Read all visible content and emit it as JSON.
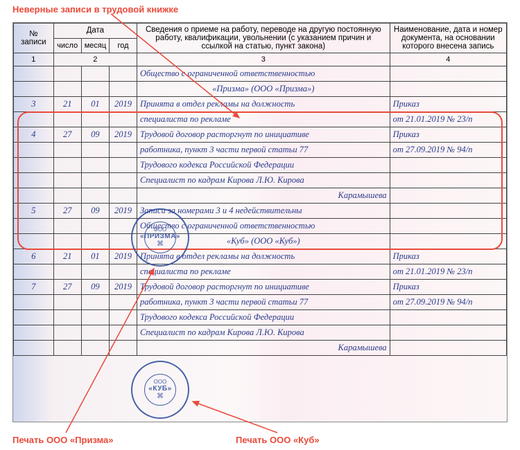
{
  "annotations": {
    "top": "Неверные записи в трудовой книжке",
    "bottom_left": "Печать ООО «Призма»",
    "bottom_right": "Печать ООО «Куб»"
  },
  "headers": {
    "col1": "№ записи",
    "col2": "Дата",
    "col3": "Сведения о приеме на работу, переводе на другую постоянную работу, квалификации, увольнении (с указанием причин и ссылкой на статью, пункт закона)",
    "col4": "Наименование, дата и номер документа, на основании которого внесена запись",
    "sub_day": "число",
    "sub_month": "месяц",
    "sub_year": "год",
    "n1": "1",
    "n2": "2",
    "n3": "3",
    "n4": "4"
  },
  "rows": [
    {
      "n": "",
      "d": "",
      "m": "",
      "y": "",
      "info": "Общество с ограниченной ответственностью",
      "doc": ""
    },
    {
      "n": "",
      "d": "",
      "m": "",
      "y": "",
      "info": "«Призма» (ООО «Призма»)",
      "doc": "",
      "center_info": true
    },
    {
      "n": "3",
      "d": "21",
      "m": "01",
      "y": "2019",
      "info": "Принята в отдел рекламы на должность",
      "doc": "Приказ"
    },
    {
      "n": "",
      "d": "",
      "m": "",
      "y": "",
      "info": "специалиста по рекламе",
      "doc": "от 21.01.2019 № 23/п"
    },
    {
      "n": "4",
      "d": "27",
      "m": "09",
      "y": "2019",
      "info": "Трудовой договор расторгнут по инициативе",
      "doc": "Приказ"
    },
    {
      "n": "",
      "d": "",
      "m": "",
      "y": "",
      "info": "работника, пункт 3 части первой статьи 77",
      "doc": "от 27.09.2019 № 94/п"
    },
    {
      "n": "",
      "d": "",
      "m": "",
      "y": "",
      "info": "Трудового кодекса Российской Федерации",
      "doc": ""
    },
    {
      "n": "",
      "d": "",
      "m": "",
      "y": "",
      "info": "Специалист по кадрам  <sig>Кирова</sig> Л.Ю. Кирова",
      "doc": ""
    },
    {
      "n": "",
      "d": "",
      "m": "",
      "y": "",
      "info": "<sigr>Карамышева</sigr>",
      "doc": ""
    },
    {
      "n": "5",
      "d": "27",
      "m": "09",
      "y": "2019",
      "info": "Записи за номерами 3 и 4 недействительны",
      "doc": ""
    },
    {
      "n": "",
      "d": "",
      "m": "",
      "y": "",
      "info": "Общество с ограниченной ответственностью",
      "doc": ""
    },
    {
      "n": "",
      "d": "",
      "m": "",
      "y": "",
      "info": "«Куб» (ООО «Куб»)",
      "doc": "",
      "center_info": true
    },
    {
      "n": "6",
      "d": "21",
      "m": "01",
      "y": "2019",
      "info": "Принята в отдел рекламы на должность",
      "doc": "Приказ"
    },
    {
      "n": "",
      "d": "",
      "m": "",
      "y": "",
      "info": "специалиста по рекламе",
      "doc": "от 21.01.2019 № 23/п"
    },
    {
      "n": "7",
      "d": "27",
      "m": "09",
      "y": "2019",
      "info": "Трудовой договор расторгнут по инициативе",
      "doc": "Приказ"
    },
    {
      "n": "",
      "d": "",
      "m": "",
      "y": "",
      "info": "работника, пункт 3 части первой статьи 77",
      "doc": "от 27.09.2019 № 94/п"
    },
    {
      "n": "",
      "d": "",
      "m": "",
      "y": "",
      "info": "Трудового кодекса Российской Федерации",
      "doc": ""
    },
    {
      "n": "",
      "d": "",
      "m": "",
      "y": "",
      "info": "Специалист по кадрам  <sig>Кирова</sig> Л.Ю. Кирова",
      "doc": ""
    },
    {
      "n": "",
      "d": "",
      "m": "",
      "y": "",
      "info": "<sigr>Карамышева</sigr>",
      "doc": ""
    }
  ],
  "stamps": {
    "prizma": {
      "ooo": "ООО",
      "name": "«ПРИЗМА»",
      "sym": "⌘"
    },
    "kub": {
      "ooo": "ООО",
      "name": "«КУБ»",
      "sym": "⌘"
    }
  },
  "style": {
    "annotation_color": "#e84a3a",
    "data_color": "#2a3a8a",
    "stamp_color": "#2a4a9a",
    "border_color": "#444"
  }
}
